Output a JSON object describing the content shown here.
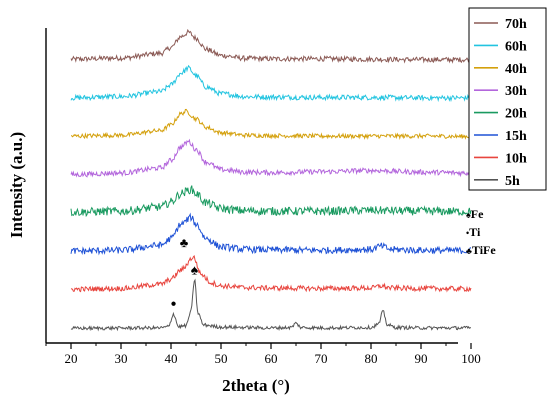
{
  "chart_data": {
    "type": "line",
    "title": "",
    "xlabel": "2theta (°)",
    "ylabel": "Intensity (a.u.)",
    "xlim": [
      15,
      103
    ],
    "x_ticks": [
      20,
      30,
      40,
      50,
      60,
      70,
      80,
      90,
      100
    ],
    "y_ticks_labeled": false,
    "grid": false,
    "legend_position": "top-right",
    "series": [
      {
        "name": "70h",
        "color": "#8b5a55",
        "offset": 7,
        "noise": 0.06,
        "x": [
          20,
          30,
          38,
          40,
          42,
          43.5,
          45,
          47,
          50,
          55,
          60,
          70,
          80,
          90,
          100
        ],
        "y": [
          0.08,
          0.11,
          0.22,
          0.36,
          0.62,
          0.72,
          0.58,
          0.32,
          0.17,
          0.1,
          0.09,
          0.09,
          0.08,
          0.07,
          0.07
        ]
      },
      {
        "name": "60h",
        "color": "#22c4e0",
        "offset": 6,
        "noise": 0.06,
        "x": [
          20,
          30,
          38,
          40,
          42,
          43.5,
          45,
          47,
          50,
          55,
          60,
          70,
          80,
          90,
          100
        ],
        "y": [
          0.07,
          0.1,
          0.22,
          0.38,
          0.66,
          0.78,
          0.6,
          0.33,
          0.17,
          0.1,
          0.09,
          0.08,
          0.08,
          0.07,
          0.07
        ]
      },
      {
        "name": "40h",
        "color": "#d4a00c",
        "offset": 5,
        "noise": 0.05,
        "x": [
          20,
          30,
          38,
          40,
          42,
          43,
          45,
          47,
          50,
          55,
          60,
          70,
          80,
          90,
          100
        ],
        "y": [
          0.07,
          0.09,
          0.2,
          0.34,
          0.6,
          0.66,
          0.48,
          0.28,
          0.15,
          0.09,
          0.08,
          0.07,
          0.07,
          0.07,
          0.06
        ]
      },
      {
        "name": "30h",
        "color": "#b366dc",
        "offset": 4,
        "noise": 0.06,
        "x": [
          20,
          30,
          38,
          40,
          42,
          43.5,
          45,
          47,
          50,
          55,
          60,
          70,
          80,
          90,
          100
        ],
        "y": [
          0.06,
          0.1,
          0.22,
          0.4,
          0.72,
          0.85,
          0.66,
          0.36,
          0.18,
          0.12,
          0.11,
          0.13,
          0.16,
          0.12,
          0.1
        ]
      },
      {
        "name": "20h",
        "color": "#1a9a60",
        "offset": 3,
        "noise": 0.1,
        "x": [
          20,
          30,
          38,
          40,
          42,
          44,
          45,
          47,
          50,
          55,
          60,
          70,
          80,
          90,
          100
        ],
        "y": [
          0.08,
          0.1,
          0.2,
          0.32,
          0.52,
          0.62,
          0.52,
          0.3,
          0.16,
          0.11,
          0.1,
          0.1,
          0.12,
          0.1,
          0.09
        ]
      },
      {
        "name": "15h",
        "color": "#1f52d6",
        "offset": 2,
        "noise": 0.08,
        "x": [
          20,
          30,
          38,
          40,
          42,
          44,
          45,
          47,
          50,
          55,
          60,
          70,
          80,
          82,
          84,
          90,
          100
        ],
        "y": [
          0.06,
          0.08,
          0.2,
          0.36,
          0.7,
          0.86,
          0.7,
          0.36,
          0.16,
          0.1,
          0.09,
          0.08,
          0.1,
          0.18,
          0.1,
          0.08,
          0.07
        ]
      },
      {
        "name": "10h",
        "color": "#e8453e",
        "offset": 1,
        "noise": 0.06,
        "x": [
          20,
          30,
          38,
          40,
          42,
          44.5,
          46,
          48,
          50,
          55,
          60,
          70,
          80,
          82,
          84,
          90,
          100
        ],
        "y": [
          0.06,
          0.08,
          0.18,
          0.3,
          0.52,
          0.82,
          0.42,
          0.22,
          0.14,
          0.1,
          0.09,
          0.08,
          0.09,
          0.14,
          0.09,
          0.08,
          0.07
        ]
      },
      {
        "name": "5h",
        "color": "#555555",
        "offset": 0,
        "noise": 0.04,
        "x": [
          20,
          38,
          39.5,
          40.5,
          41.5,
          43,
          44,
          44.7,
          45.4,
          46.5,
          50,
          55,
          60,
          64,
          65,
          66,
          70,
          80,
          81.5,
          82.4,
          83.3,
          85,
          90,
          100
        ],
        "y": [
          0.04,
          0.05,
          0.08,
          0.38,
          0.08,
          0.1,
          0.45,
          1.2,
          0.4,
          0.12,
          0.07,
          0.06,
          0.05,
          0.06,
          0.16,
          0.06,
          0.05,
          0.06,
          0.14,
          0.44,
          0.12,
          0.06,
          0.05,
          0.05
        ]
      }
    ],
    "annotations": [
      {
        "symbol": "●",
        "label": "Ti",
        "x": 40.5,
        "series": "5h",
        "lift": 0.18,
        "size": 10
      },
      {
        "symbol": "♠",
        "label": "Fe",
        "x": 44.7,
        "series": "5h",
        "lift": 0.12,
        "size": 14
      },
      {
        "symbol": "♣",
        "label": "TiFe",
        "x": 42.6,
        "series": "10h",
        "lift": 0.5,
        "size": 13
      }
    ],
    "phase_key": [
      {
        "symbol": "♠",
        "label": "Fe"
      },
      {
        "symbol": "•",
        "label": "Ti"
      },
      {
        "symbol": "♣",
        "label": "TiFe"
      }
    ]
  }
}
